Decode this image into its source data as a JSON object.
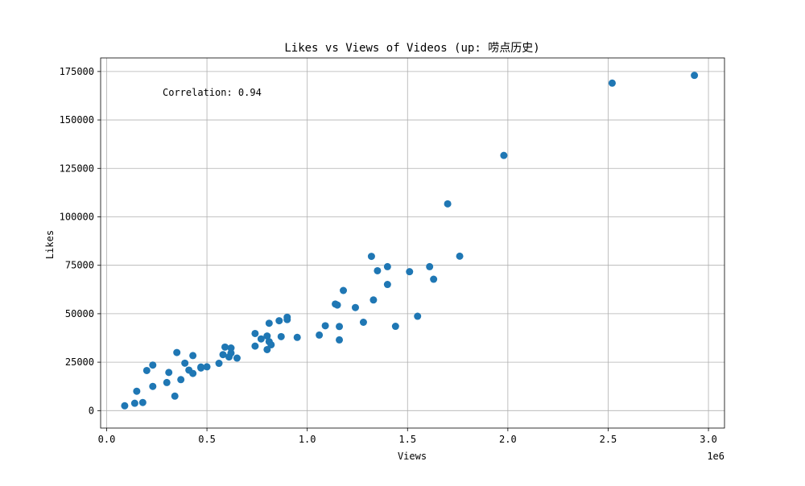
{
  "chart_data": {
    "type": "scatter",
    "title": "Likes vs Views of Videos (up: 唠点历史)",
    "xlabel": "Views",
    "ylabel": "Likes",
    "x_offset_label": "1e6",
    "annotation": "Correlation: 0.94",
    "xlim": [
      -0.03,
      3.08
    ],
    "ylim": [
      -9000,
      182000
    ],
    "x_ticks": [
      0.0,
      0.5,
      1.0,
      1.5,
      2.0,
      2.5,
      3.0
    ],
    "x_tick_labels": [
      "0.0",
      "0.5",
      "1.0",
      "1.5",
      "2.0",
      "2.5",
      "3.0"
    ],
    "y_ticks": [
      0,
      25000,
      50000,
      75000,
      100000,
      125000,
      150000,
      175000
    ],
    "y_tick_labels": [
      "0",
      "25000",
      "50000",
      "75000",
      "100000",
      "125000",
      "150000",
      "175000"
    ],
    "grid": true,
    "marker_color": "#1f77b4",
    "series": [
      {
        "x": [
          0.09,
          0.14,
          0.15,
          0.18,
          0.2,
          0.23,
          0.23,
          0.3,
          0.31,
          0.34,
          0.35,
          0.37,
          0.39,
          0.41,
          0.43,
          0.43,
          0.47,
          0.47,
          0.5,
          0.56,
          0.58,
          0.59,
          0.61,
          0.62,
          0.62,
          0.65,
          0.74,
          0.74,
          0.77,
          0.8,
          0.8,
          0.81,
          0.81,
          0.82,
          0.86,
          0.87,
          0.9,
          0.9,
          0.95,
          1.06,
          1.09,
          1.14,
          1.15,
          1.16,
          1.16,
          1.18,
          1.24,
          1.28,
          1.32,
          1.33,
          1.35,
          1.4,
          1.4,
          1.44,
          1.51,
          1.55,
          1.61,
          1.63,
          1.7,
          1.76,
          1.98,
          2.52,
          2.93
        ],
        "y": [
          2500,
          3800,
          10000,
          4200,
          20700,
          12500,
          23500,
          14500,
          19700,
          7500,
          30000,
          16000,
          24500,
          20900,
          19200,
          28400,
          22500,
          22000,
          22600,
          24400,
          28900,
          32800,
          27700,
          32300,
          29700,
          27100,
          33300,
          39800,
          37000,
          31500,
          38500,
          45100,
          35600,
          34000,
          46400,
          38200,
          48200,
          47000,
          37800,
          39000,
          43800,
          55000,
          54500,
          43400,
          36500,
          62000,
          53200,
          45600,
          79600,
          57100,
          72200,
          74300,
          65100,
          43500,
          71700,
          48700,
          74300,
          67800,
          106700,
          79700,
          131700,
          169000,
          173000
        ]
      }
    ]
  }
}
